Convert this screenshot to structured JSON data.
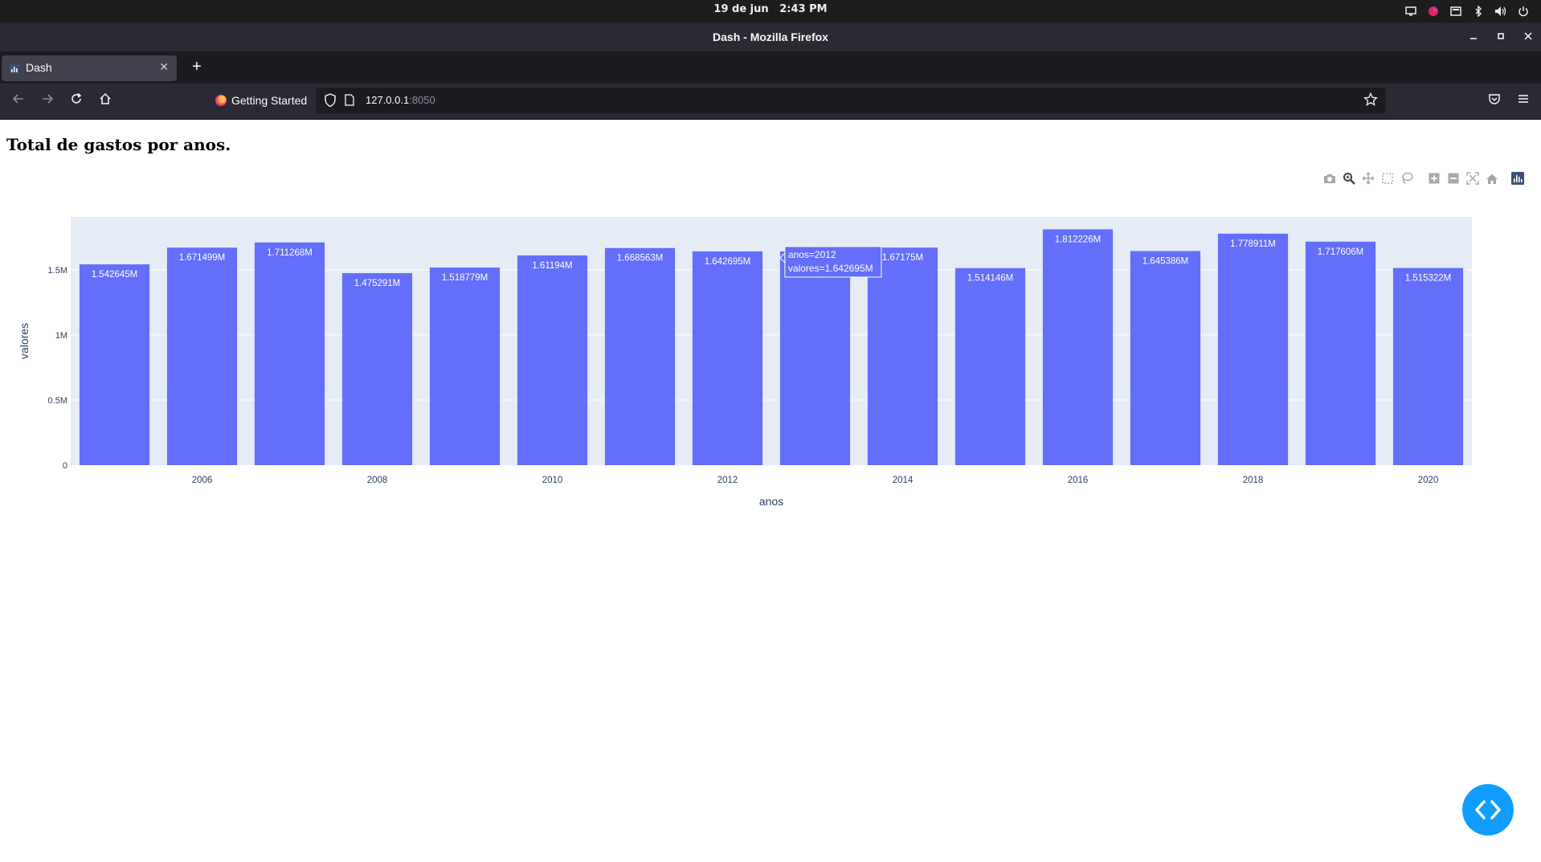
{
  "system": {
    "date": "19 de jun",
    "time": "2:43 PM",
    "tray_icons": [
      "display-icon",
      "app-indicator-icon",
      "screenshot-icon",
      "bluetooth-icon",
      "volume-icon",
      "power-icon"
    ]
  },
  "window": {
    "title": "Dash - Mozilla Firefox"
  },
  "tabs": [
    {
      "label": "Dash",
      "active": true
    }
  ],
  "navbar": {
    "bookmark_label": "Getting Started",
    "url_host": "127.0.0.1",
    "url_port": ":8050"
  },
  "page": {
    "heading": "Total de gastos por anos."
  },
  "tooltip": {
    "line1": "anos=2012",
    "line2": "valores=1.642695M"
  },
  "colors": {
    "bar": "#636efa",
    "plot_bg": "#e5ecf6",
    "accent_fab": "#119dff"
  },
  "chart_data": {
    "type": "bar",
    "categories": [
      "2005",
      "2006",
      "2007",
      "2008",
      "2009",
      "2010",
      "2011",
      "2012",
      "2013",
      "2014",
      "2015",
      "2016",
      "2017",
      "2018",
      "2019",
      "2020"
    ],
    "values": [
      1542645,
      1671499,
      1711268,
      1475291,
      1518779,
      1611940,
      1668563,
      1642695,
      1642695,
      1671750,
      1514146,
      1812226,
      1645386,
      1778911,
      1717606,
      1515322
    ],
    "data_labels": [
      "1.542645M",
      "1.671499M",
      "1.711268M",
      "1.475291M",
      "1.518779M",
      "1.61194M",
      "1.668563M",
      "1.642695M",
      "",
      "1.67175M",
      "1.514146M",
      "1.812226M",
      "1.645386M",
      "1.778911M",
      "1.717606M",
      "1.515322M"
    ],
    "x_ticks": [
      "2006",
      "2008",
      "2010",
      "2012",
      "2014",
      "2016",
      "2018",
      "2020"
    ],
    "y_ticks": [
      {
        "value": 0,
        "label": "0"
      },
      {
        "value": 500000,
        "label": "0.5M"
      },
      {
        "value": 1000000,
        "label": "1M"
      },
      {
        "value": 1500000,
        "label": "1.5M"
      }
    ],
    "ylim": [
      0,
      1907606
    ],
    "xlabel": "anos",
    "ylabel": "valores",
    "title": "",
    "grid": true
  }
}
